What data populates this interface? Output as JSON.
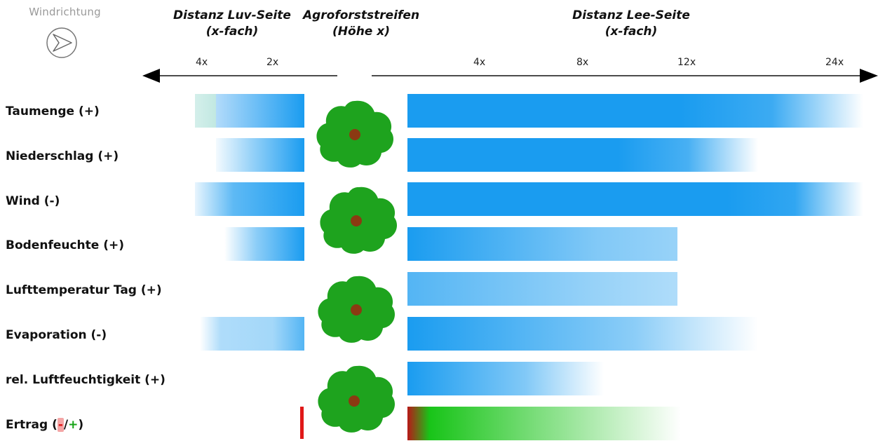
{
  "header": {
    "wind_label": "Windrichtung",
    "luv_line1": "Distanz Luv-Seite",
    "luv_line2": "(x-fach)",
    "agro_line1": "Agroforststreifen",
    "agro_line2": "(Höhe x)",
    "lee_line1": "Distanz Lee-Seite",
    "lee_line2": "(x-fach)"
  },
  "ticks": {
    "luv": [
      "4x",
      "2x"
    ],
    "lee": [
      "4x",
      "8x",
      "12x",
      "24x"
    ]
  },
  "rows": [
    {
      "label": "Taumenge (+)"
    },
    {
      "label": "Niederschlag (+)"
    },
    {
      "label": "Wind (-)"
    },
    {
      "label": "Bodenfeuchte (+)"
    },
    {
      "label": "Lufttemperatur Tag (+)"
    },
    {
      "label": "Evaporation (-)"
    },
    {
      "label": "rel. Luftfeuchtigkeit (+)"
    }
  ],
  "ertrag": {
    "prefix": "Ertrag (",
    "minus": "-",
    "slash": "/",
    "plus": "+",
    "suffix": ")"
  },
  "colors": {
    "bar_blue": "#1a9cf0",
    "tree_green": "#1ea31e",
    "trunk_brown": "#8b3a12",
    "yield_green": "#18c418",
    "yield_red": "#c61818"
  },
  "icons": {
    "wind": "wind-direction-arrow-icon",
    "tree": "tree-icon"
  }
}
